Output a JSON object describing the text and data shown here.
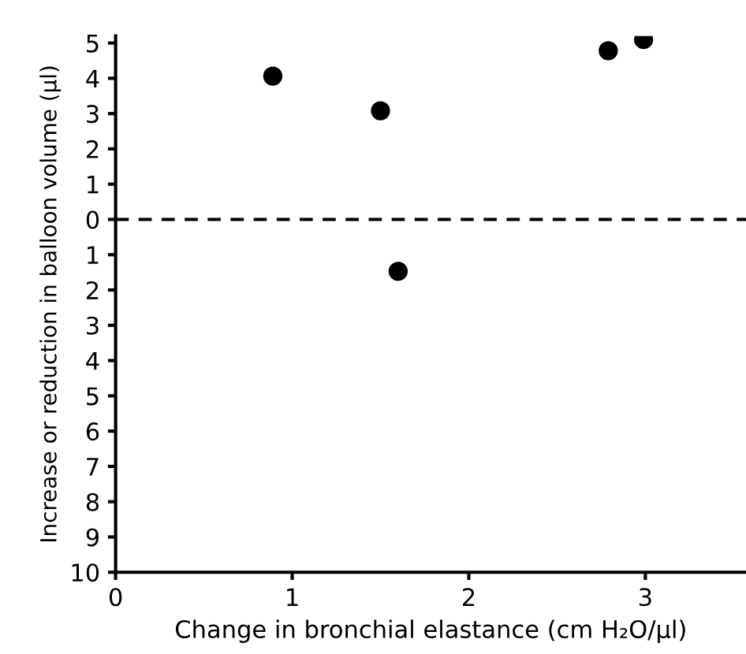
{
  "chart_data": {
    "type": "scatter",
    "xlabel": "Change in bronchial elastance (cm H₂O/μl)",
    "ylabel": "Increase or reduction in balloon volume (μl)",
    "x": [
      0.89,
      1.5,
      1.6,
      2.79,
      2.99
    ],
    "values": [
      4.06,
      3.08,
      -1.47,
      4.78,
      5.1
    ],
    "color": "#000000",
    "marker": "circle",
    "xlim": [
      0,
      3.57
    ],
    "xticks": [
      0,
      1,
      2,
      3
    ],
    "ylim": [
      -10,
      5.2
    ],
    "yticks": [
      5,
      4,
      3,
      2,
      1,
      0,
      {
        "value": -1,
        "label": "1"
      },
      {
        "value": -2,
        "label": "2"
      },
      {
        "value": -3,
        "label": "3"
      },
      {
        "value": -4,
        "label": "4"
      },
      {
        "value": -5,
        "label": "5"
      },
      {
        "value": -6,
        "label": "6"
      },
      {
        "value": -7,
        "label": "7"
      },
      {
        "value": -8,
        "label": "8"
      },
      {
        "value": -9,
        "label": "9"
      },
      {
        "value": -10,
        "label": "10"
      }
    ],
    "ref_lines": [
      {
        "axis": "y",
        "value": 0,
        "color": "#000000",
        "line_style": "dashed"
      }
    ],
    "grid": false,
    "legend": false
  }
}
